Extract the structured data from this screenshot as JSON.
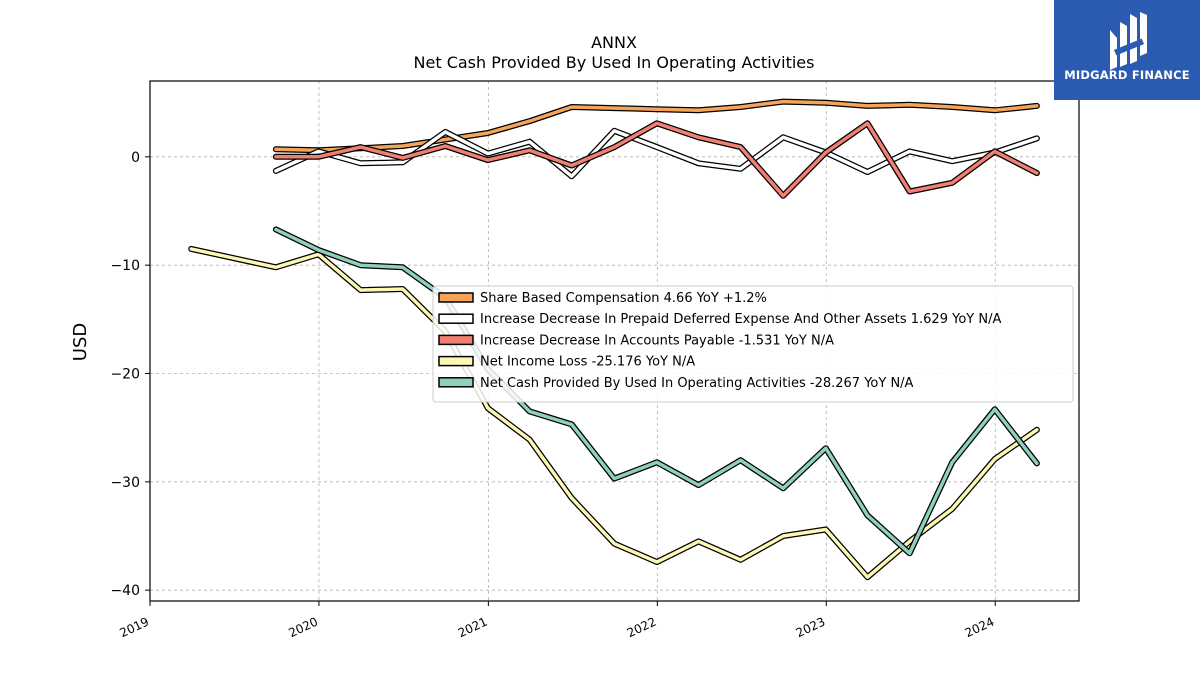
{
  "brand": {
    "name": "MIDGARD FINANCE",
    "logo_icon": "midgard-logo-icon",
    "background": "#2b5bb0"
  },
  "chart_data": {
    "type": "line",
    "title": "ANNX",
    "subtitle": "Net Cash Provided By Used In Operating Activities",
    "ylabel": "USD",
    "xlabel": "",
    "ylim": [
      -41,
      7
    ],
    "xlim": [
      "2019-01-01",
      "2024-06-30"
    ],
    "yticks": [
      0,
      -10,
      -20,
      -30,
      -40
    ],
    "ytick_labels": [
      "0",
      "−10",
      "−20",
      "−30",
      "−40"
    ],
    "xticks": [
      "2019-01-01",
      "2020-01-01",
      "2021-01-01",
      "2022-01-01",
      "2023-01-01",
      "2024-01-01"
    ],
    "xtick_labels": [
      "2019",
      "2020",
      "2021",
      "2022",
      "2023",
      "2024"
    ],
    "grid": true,
    "legend_position": "center-right",
    "series": [
      {
        "name": "Share Based Compensation",
        "legend_label": "Share Based Compensation  4.66 YoY +1.2%",
        "color": "#f5a55a",
        "dates": [
          "2019-09-30",
          "2019-12-31",
          "2020-03-31",
          "2020-06-30",
          "2020-09-30",
          "2020-12-31",
          "2021-03-31",
          "2021-06-30",
          "2021-09-30",
          "2021-12-31",
          "2022-03-31",
          "2022-06-30",
          "2022-09-30",
          "2022-12-31",
          "2023-03-31",
          "2023-06-30",
          "2023-09-30",
          "2023-12-31",
          "2024-03-31"
        ],
        "values": [
          0.7,
          0.6,
          0.8,
          1.0,
          1.6,
          2.2,
          3.3,
          4.6,
          4.5,
          4.4,
          4.3,
          4.6,
          5.1,
          5.0,
          4.7,
          4.8,
          4.6,
          4.3,
          4.7
        ]
      },
      {
        "name": "Increase Decrease In Prepaid Deferred Expense And Other Assets",
        "legend_label": "Increase Decrease In Prepaid Deferred Expense And Other Assets  1.629 YoY N/A",
        "color": "#ffffff",
        "dates": [
          "2019-09-30",
          "2019-12-31",
          "2020-03-31",
          "2020-06-30",
          "2020-09-30",
          "2020-12-31",
          "2021-03-31",
          "2021-06-30",
          "2021-09-30",
          "2021-12-31",
          "2022-03-31",
          "2022-06-30",
          "2022-09-30",
          "2022-12-31",
          "2023-03-31",
          "2023-06-30",
          "2023-09-30",
          "2023-12-31",
          "2024-03-31"
        ],
        "values": [
          -1.3,
          0.5,
          -0.6,
          -0.5,
          2.3,
          0.3,
          1.4,
          -1.8,
          2.4,
          0.9,
          -0.6,
          -1.1,
          1.8,
          0.4,
          -1.4,
          0.5,
          -0.4,
          0.4,
          1.7
        ]
      },
      {
        "name": "Increase Decrease In Accounts Payable",
        "legend_label": "Increase Decrease In Accounts Payable  -1.531 YoY N/A",
        "color": "#f28072",
        "dates": [
          "2019-09-30",
          "2019-12-31",
          "2020-03-31",
          "2020-06-30",
          "2020-09-30",
          "2020-12-31",
          "2021-03-31",
          "2021-06-30",
          "2021-09-30",
          "2021-12-31",
          "2022-03-31",
          "2022-06-30",
          "2022-09-30",
          "2022-12-31",
          "2023-03-31",
          "2023-06-30",
          "2023-09-30",
          "2023-12-31",
          "2024-03-31"
        ],
        "values": [
          0.0,
          0.0,
          0.9,
          -0.1,
          1.0,
          -0.3,
          0.6,
          -0.8,
          0.9,
          3.1,
          1.8,
          0.9,
          -3.6,
          0.4,
          3.1,
          -3.2,
          -2.4,
          0.5,
          -1.5
        ]
      },
      {
        "name": "Net Income Loss",
        "legend_label": "Net Income Loss  -25.176 YoY N/A",
        "color": "#fdf7b4",
        "dates": [
          "2019-03-31",
          "2019-09-30",
          "2019-12-31",
          "2020-03-31",
          "2020-06-30",
          "2020-09-30",
          "2020-12-31",
          "2021-03-31",
          "2021-06-30",
          "2021-09-30",
          "2021-12-31",
          "2022-03-31",
          "2022-06-30",
          "2022-09-30",
          "2022-12-31",
          "2023-03-31",
          "2023-06-30",
          "2023-09-30",
          "2023-12-31",
          "2024-03-31"
        ],
        "values": [
          -8.5,
          -10.2,
          -9.0,
          -12.3,
          -12.2,
          -16.1,
          -23.2,
          -26.1,
          -31.5,
          -35.7,
          -37.4,
          -35.5,
          -37.2,
          -35.0,
          -34.4,
          -38.8,
          -35.5,
          -32.5,
          -27.9,
          -25.2
        ]
      },
      {
        "name": "Net Cash Provided By Used In Operating Activities",
        "legend_label": "Net Cash Provided By Used In Operating Activities  -28.267 YoY N/A",
        "color": "#8ecfc0",
        "dates": [
          "2019-09-30",
          "2019-12-31",
          "2020-03-31",
          "2020-06-30",
          "2020-09-30",
          "2020-12-31",
          "2021-03-31",
          "2021-06-30",
          "2021-09-30",
          "2021-12-31",
          "2022-03-31",
          "2022-06-30",
          "2022-09-30",
          "2022-12-31",
          "2023-03-31",
          "2023-06-30",
          "2023-09-30",
          "2023-12-31",
          "2024-03-31"
        ],
        "values": [
          -6.7,
          -8.6,
          -10.0,
          -10.2,
          -13.0,
          -19.6,
          -23.5,
          -24.7,
          -29.7,
          -28.2,
          -30.3,
          -28.0,
          -30.6,
          -26.9,
          -33.1,
          -36.6,
          -28.2,
          -23.3,
          -28.3
        ]
      }
    ]
  }
}
